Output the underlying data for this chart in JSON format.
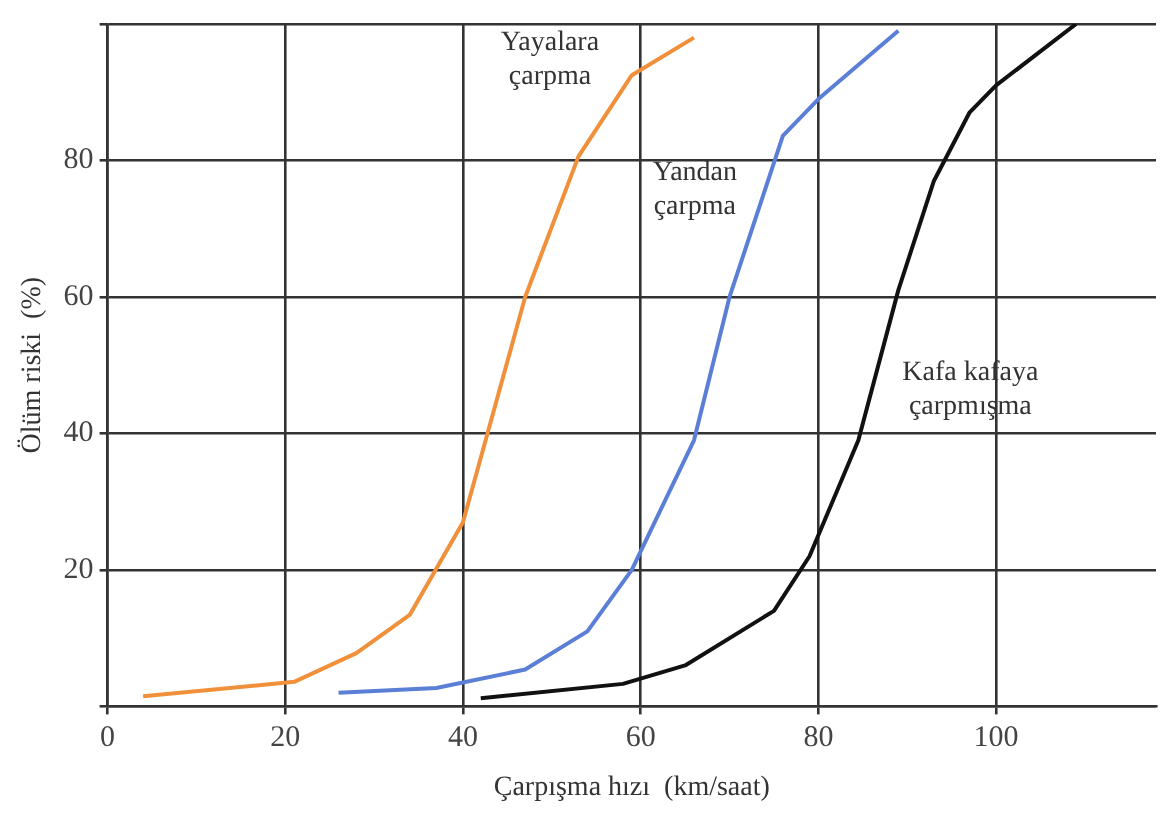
{
  "chart_data": {
    "type": "line",
    "xlabel": "Çarpışma hızı  (km/saat)",
    "ylabel": "Ölüm riski  (%)",
    "xlim": [
      0,
      118
    ],
    "xticks": [
      0,
      20,
      40,
      60,
      80,
      100
    ],
    "ylim": [
      0,
      100
    ],
    "yticks": [
      {
        "value": 0,
        "label": null
      },
      20,
      40,
      60,
      80,
      {
        "value": 100,
        "label": null
      }
    ],
    "grid": true,
    "legend": false,
    "marker": "none",
    "line_style": "solid",
    "series": [
      {
        "name": "Yayalara çarpma",
        "color": "#f0903a",
        "x": [
          4,
          21,
          28,
          34,
          40,
          47,
          53,
          59,
          66
        ],
        "values": [
          1.5,
          3.6,
          7.8,
          13.4,
          27,
          60,
          80.6,
          92.5,
          98
        ]
      },
      {
        "name": "Yandan çarpma",
        "color": "#5b7fd6",
        "x": [
          26,
          37,
          47,
          54,
          59,
          66,
          70,
          76,
          80,
          89
        ],
        "values": [
          2,
          2.7,
          5.4,
          11,
          20,
          39,
          60,
          83.6,
          89,
          99
        ]
      },
      {
        "name": "Kafa kafaya çarpmışma",
        "color": "#111111",
        "x": [
          42,
          58,
          65,
          75,
          79,
          84.5,
          89,
          93,
          97,
          100,
          109
        ],
        "values": [
          1.2,
          3.3,
          6,
          14,
          22,
          39,
          61,
          77,
          87,
          91,
          100
        ]
      }
    ]
  }
}
